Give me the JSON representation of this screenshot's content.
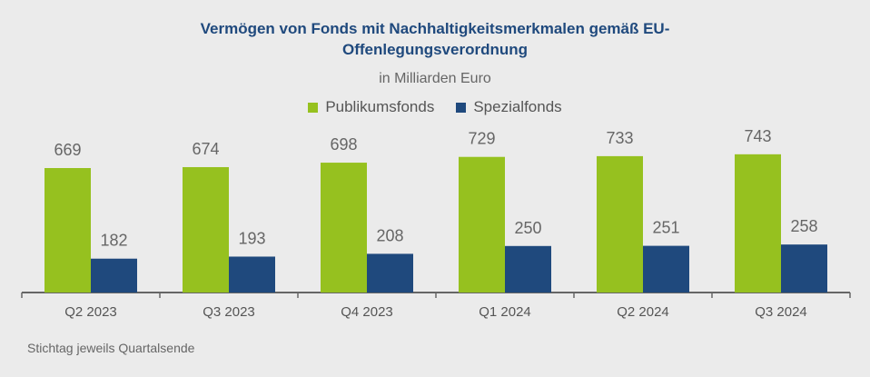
{
  "chart_data": {
    "type": "bar",
    "title": "Vermögen von Fonds mit Nachhaltigkeitsmerkmalen gemäß EU-Offenlegungsverordnung",
    "title_lines": [
      "Vermögen von Fonds mit Nachhaltigkeitsmerkmalen gemäß EU-",
      "Offenlegungsverordnung"
    ],
    "subtitle": "in Milliarden Euro",
    "categories": [
      "Q2 2023",
      "Q3 2023",
      "Q4 2023",
      "Q1 2024",
      "Q2 2024",
      "Q3 2024"
    ],
    "series": [
      {
        "name": "Publikumsfonds",
        "color": "#96c11f",
        "values": [
          669,
          674,
          698,
          729,
          733,
          743
        ]
      },
      {
        "name": "Spezialfonds",
        "color": "#1f497d",
        "values": [
          182,
          193,
          208,
          250,
          251,
          258
        ]
      }
    ],
    "ylim": [
      0,
      800
    ],
    "grid": false,
    "legend_position": "top",
    "data_labels": true,
    "footnote": "Stichtag jeweils Quartalsende"
  }
}
